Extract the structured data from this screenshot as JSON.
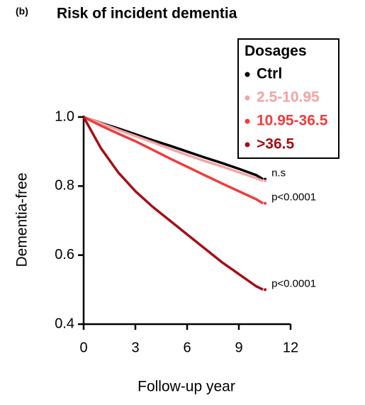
{
  "panel_label": "(b)",
  "chart_data": {
    "type": "line",
    "title": "Risk of incident dementia",
    "x_label": "Follow-up year",
    "y_label": "Dementia-free",
    "x": [
      0,
      1,
      2,
      3,
      4,
      5,
      6,
      7,
      8,
      9,
      10,
      10.4
    ],
    "series": [
      {
        "name": "Ctrl",
        "color": "#000000",
        "values": [
          1,
          0.983,
          0.967,
          0.95,
          0.933,
          0.917,
          0.9,
          0.883,
          0.867,
          0.85,
          0.832,
          0.82
        ]
      },
      {
        "name": "2.5-10.95",
        "color": "#f4a3a3",
        "values": [
          1,
          0.982,
          0.963,
          0.945,
          0.927,
          0.908,
          0.89,
          0.873,
          0.857,
          0.84,
          0.823,
          0.815
        ]
      },
      {
        "name": "10.95-36.5",
        "color": "#f03c3c",
        "values": [
          1,
          0.975,
          0.952,
          0.93,
          0.905,
          0.88,
          0.856,
          0.832,
          0.808,
          0.785,
          0.762,
          0.75
        ]
      },
      {
        "name": ">36.5",
        "color": "#a50f15",
        "values": [
          1,
          0.91,
          0.84,
          0.785,
          0.74,
          0.7,
          0.66,
          0.62,
          0.58,
          0.545,
          0.51,
          0.5
        ]
      }
    ],
    "legend_title": "Dosages",
    "legend": "upper right",
    "annotations": [
      "n.s",
      "p<0.0001",
      "p<0.0001"
    ],
    "xlim": [
      0,
      12
    ],
    "xticks": [
      0,
      3,
      6,
      9,
      12
    ],
    "ylim": [
      0.4,
      1
    ],
    "yticks": [
      0.4,
      0.6,
      0.8,
      {
        "value": 1,
        "label": "1.0"
      }
    ]
  }
}
